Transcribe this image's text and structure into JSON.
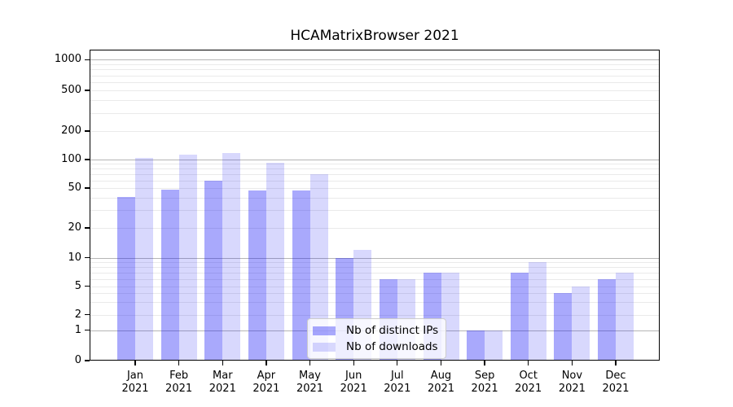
{
  "title": "HCAMatrixBrowser 2021",
  "chart_data": {
    "type": "bar",
    "title": "HCAMatrixBrowser 2021",
    "categories": [
      "Jan",
      "Feb",
      "Mar",
      "Apr",
      "May",
      "Jun",
      "Jul",
      "Aug",
      "Sep",
      "Oct",
      "Nov",
      "Dec"
    ],
    "category_year": "2021",
    "series": [
      {
        "name": "Nb of distinct IPs",
        "color": "rgba(10,10,245,0.35)",
        "values": [
          41,
          48,
          60,
          47,
          47,
          10,
          6,
          7,
          1,
          7,
          4,
          6
        ]
      },
      {
        "name": "Nb of downloads",
        "color": "rgba(10,10,245,0.16)",
        "values": [
          105,
          113,
          118,
          92,
          70,
          12,
          6,
          7,
          1,
          9,
          5,
          7
        ]
      }
    ],
    "xlabel": "",
    "ylabel": "",
    "yscale": "symlog",
    "y_ticks": [
      0,
      1,
      2,
      5,
      10,
      20,
      50,
      100,
      200,
      500,
      1000
    ],
    "ylim": [
      0,
      1270
    ],
    "grid": "horizontal major and log-minor gridlines",
    "legend_position": "lower center"
  },
  "colors": {
    "major_gridline": "#b5b5b5",
    "minor_gridline": "#eaeaea",
    "axis": "#000000",
    "background": "#ffffff"
  }
}
